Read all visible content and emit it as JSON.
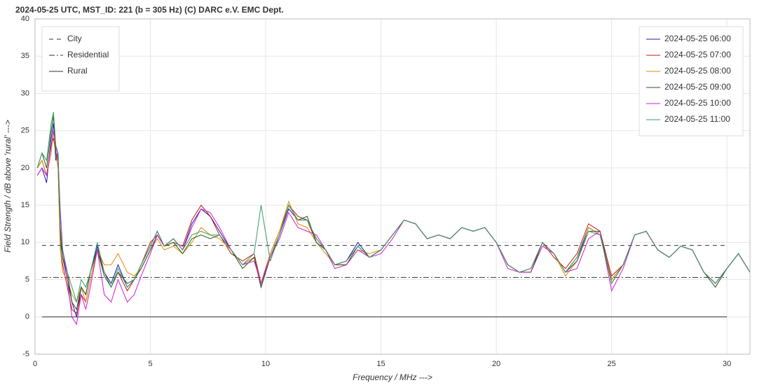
{
  "chart_data": {
    "type": "line",
    "title": "2024-05-25  UTC,  MST_ID:  221   (b = 305 Hz)   (C) DARC e.V. EMC Dept.",
    "xlabel": "Frequency / MHz --->",
    "ylabel": "Field Strength / dB above 'rural' --->",
    "xlim": [
      0,
      31
    ],
    "ylim": [
      -5,
      40
    ],
    "xticks": [
      0,
      5,
      10,
      15,
      20,
      25,
      30
    ],
    "yticks": [
      -5,
      0,
      5,
      10,
      15,
      20,
      25,
      30,
      35,
      40
    ],
    "grid": true,
    "legend": "upper right",
    "reference_legend": "upper left",
    "x": [
      0.1,
      0.3,
      0.5,
      0.7,
      0.8,
      0.9,
      1.0,
      1.1,
      1.2,
      1.4,
      1.6,
      1.8,
      2.0,
      2.2,
      2.4,
      2.7,
      3.0,
      3.3,
      3.6,
      4.0,
      4.3,
      4.6,
      5.0,
      5.3,
      5.6,
      6.0,
      6.4,
      6.8,
      7.2,
      7.6,
      8.0,
      8.5,
      9.0,
      9.5,
      9.8,
      10.2,
      10.6,
      11.0,
      11.4,
      11.8,
      12.2,
      12.6,
      13.0,
      13.5,
      14.0,
      14.5,
      15.0,
      15.5,
      16.0,
      16.5,
      17.0,
      17.5,
      18.0,
      18.5,
      19.0,
      19.5,
      20.0,
      20.5,
      21.0,
      21.5,
      22.0,
      22.5,
      23.0,
      23.5,
      24.0,
      24.5,
      25.0,
      25.5,
      26.0,
      26.5,
      27.0,
      27.5,
      28.0,
      28.5,
      29.0,
      29.5,
      30.0,
      30.5,
      31.0
    ],
    "series": [
      {
        "name": "2024-05-25 06:00",
        "color": "#1a1aa6",
        "values": [
          19,
          20,
          18,
          24,
          26,
          21,
          22,
          10,
          8,
          5,
          2,
          0,
          4,
          3,
          6,
          9.5,
          6,
          4.5,
          7,
          4,
          5,
          7,
          9.5,
          11.5,
          9.5,
          10.5,
          9,
          12.5,
          14.5,
          13.5,
          11.5,
          9,
          7,
          8,
          4,
          8,
          11,
          14.5,
          13,
          13,
          10.5,
          9,
          7,
          7.5,
          10,
          8,
          9,
          11,
          13,
          12.5,
          10.5,
          11,
          10.5,
          12,
          11.5,
          12,
          10,
          7,
          6,
          6.5,
          10,
          8.5,
          6,
          8,
          12,
          11,
          5,
          7,
          11,
          11.5,
          9,
          8,
          9.5,
          9,
          6,
          4.5,
          6.5,
          8.5,
          6
        ]
      },
      {
        "name": "2024-05-25 07:00",
        "color": "#c0180c",
        "values": [
          20,
          21,
          19,
          23,
          24,
          22,
          20,
          9,
          7,
          4,
          1,
          0.5,
          3,
          2,
          5,
          9,
          6,
          4,
          6,
          3.5,
          5,
          7,
          10,
          11,
          9.5,
          10,
          9.5,
          13,
          15,
          13.5,
          11,
          8.5,
          7.5,
          8.5,
          4.5,
          8.5,
          11.5,
          15,
          13.5,
          13,
          10,
          9,
          7,
          7.5,
          9.5,
          8,
          9,
          11,
          13,
          12.5,
          10.5,
          11,
          10.5,
          12,
          11.5,
          12,
          10,
          7,
          6,
          6,
          10,
          8,
          6.5,
          8.5,
          12.5,
          11.5,
          5.5,
          7,
          11,
          11.5,
          9,
          8,
          9.5,
          9,
          6,
          4.5,
          6.5,
          8.5,
          6
        ]
      },
      {
        "name": "2024-05-25 08:00",
        "color": "#e08a00",
        "values": [
          20,
          21,
          19,
          22,
          25,
          22,
          20,
          9,
          6,
          5,
          3,
          2,
          4,
          2,
          5,
          9,
          7,
          7,
          8.5,
          6,
          5.5,
          6.5,
          9,
          10.5,
          9,
          9.5,
          8.5,
          10,
          12,
          11,
          10.5,
          9,
          7,
          8,
          4,
          8.5,
          11.5,
          15.5,
          12.5,
          12,
          10,
          8.5,
          7,
          7,
          9,
          8.5,
          9,
          11,
          13,
          12.5,
          10.5,
          11,
          10.5,
          12,
          11.5,
          12,
          10,
          7,
          6,
          6.5,
          10,
          8.5,
          5.5,
          7.5,
          12,
          11,
          5,
          7,
          11,
          11.5,
          9,
          8,
          9.5,
          9,
          6,
          4.5,
          6.5,
          8.5,
          6
        ]
      },
      {
        "name": "2024-05-25 09:00",
        "color": "#1e5a1e",
        "values": [
          20,
          22,
          20,
          25,
          27,
          22,
          21,
          11,
          8,
          6,
          2,
          1,
          4,
          3,
          6,
          9,
          5.5,
          4,
          6,
          4.5,
          5,
          6.5,
          9,
          11,
          9.5,
          10,
          8.5,
          10.5,
          11,
          10.5,
          11,
          9,
          6.5,
          8,
          4,
          8,
          11,
          15,
          13,
          13.5,
          10,
          9,
          7,
          7,
          9.5,
          8,
          9,
          11,
          13,
          12.5,
          10.5,
          11,
          10.5,
          12,
          11.5,
          12,
          10,
          7,
          6,
          6,
          10,
          8.5,
          6,
          7.5,
          11.5,
          11.5,
          4.5,
          7,
          11,
          11.5,
          9,
          8,
          9.5,
          9,
          6,
          4,
          6.5,
          8.5,
          6
        ]
      },
      {
        "name": "2024-05-25 10:00",
        "color": "#d61ad6",
        "values": [
          19,
          20,
          19,
          23,
          25,
          23,
          21,
          14,
          9,
          5,
          0,
          -1,
          3,
          1,
          4,
          9,
          3,
          2,
          5,
          2,
          3,
          5.5,
          8.5,
          11,
          9.5,
          10.5,
          9,
          12,
          14.5,
          14,
          12,
          9,
          7,
          7.5,
          4.5,
          8,
          10.5,
          14,
          12,
          11.5,
          11,
          9,
          6.5,
          7,
          9,
          8,
          8.5,
          10.5,
          13,
          12.5,
          10.5,
          11,
          10.5,
          12,
          11.5,
          12,
          10,
          6.5,
          6,
          6,
          9.5,
          8.5,
          6,
          6.5,
          10.5,
          11.5,
          3.5,
          6.5,
          11,
          11.5,
          9,
          8,
          9.5,
          9,
          6,
          4.5,
          6.5,
          8.5,
          6
        ]
      },
      {
        "name": "2024-05-25 11:00",
        "color": "#3a9a6a",
        "values": [
          20,
          22,
          21,
          26,
          27.5,
          23,
          22,
          12,
          9,
          6,
          4,
          2,
          5,
          4,
          6,
          10,
          6,
          4,
          6.5,
          4,
          5,
          7,
          9.5,
          11.5,
          9.5,
          10.5,
          9,
          11,
          11.5,
          11,
          11,
          9,
          7,
          8.5,
          15,
          7.5,
          11,
          15,
          13,
          13,
          10.5,
          9,
          7,
          7.5,
          9.5,
          8,
          9,
          11,
          13,
          12.5,
          10.5,
          11,
          10.5,
          12,
          11.5,
          12,
          10,
          7,
          6,
          6.5,
          10,
          8.5,
          6,
          8,
          11.5,
          11,
          4.5,
          7,
          11,
          11.5,
          9,
          8,
          9.5,
          9,
          6,
          4.5,
          6.5,
          8.5,
          6
        ]
      }
    ],
    "reference_lines": [
      {
        "name": "City",
        "style": "dashed",
        "color": "#333333",
        "x": [
          0.3,
          30
        ],
        "values": [
          9.6,
          9.6
        ]
      },
      {
        "name": "Residential",
        "style": "dashdot",
        "color": "#333333",
        "x": [
          0.3,
          30
        ],
        "values": [
          5.3,
          5.3
        ]
      },
      {
        "name": "Rural",
        "style": "solid",
        "color": "#333333",
        "x": [
          0.3,
          30
        ],
        "values": [
          0,
          0
        ]
      }
    ]
  }
}
